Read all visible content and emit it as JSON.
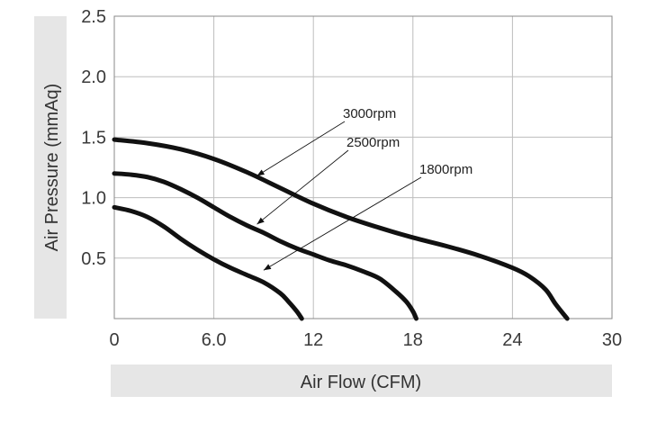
{
  "chart_data": {
    "type": "line",
    "xlabel": "Air Flow (CFM)",
    "ylabel": "Air Pressure (mmAq)",
    "xlim": [
      0,
      30
    ],
    "ylim": [
      0,
      2.5
    ],
    "x_ticks": [
      "0",
      "6.0",
      "12",
      "18",
      "24",
      "30"
    ],
    "y_ticks": [
      "0.5",
      "1.0",
      "1.5",
      "2.0",
      "2.5"
    ],
    "grid": true,
    "legend": "none",
    "series": [
      {
        "name": "3000rpm",
        "x": [
          0,
          2,
          4,
          6,
          8,
          10,
          12,
          14,
          16,
          18,
          20,
          22,
          24,
          25,
          26,
          26.6,
          27.3
        ],
        "y": [
          1.48,
          1.45,
          1.4,
          1.32,
          1.21,
          1.08,
          0.95,
          0.84,
          0.75,
          0.67,
          0.6,
          0.52,
          0.42,
          0.35,
          0.24,
          0.12,
          0.0
        ]
      },
      {
        "name": "2500rpm",
        "x": [
          0,
          1,
          2,
          3,
          4,
          5,
          6,
          7,
          8,
          9,
          10,
          11,
          12,
          13,
          14,
          15,
          16,
          17,
          17.6,
          18.0,
          18.2
        ],
        "y": [
          1.2,
          1.19,
          1.17,
          1.13,
          1.07,
          1.0,
          0.92,
          0.84,
          0.77,
          0.71,
          0.64,
          0.58,
          0.53,
          0.48,
          0.44,
          0.39,
          0.33,
          0.22,
          0.14,
          0.06,
          0.0
        ]
      },
      {
        "name": "1800rpm",
        "x": [
          0,
          1,
          2,
          3,
          4,
          5,
          6,
          7,
          8,
          9,
          10,
          10.5,
          11.0,
          11.3
        ],
        "y": [
          0.92,
          0.89,
          0.84,
          0.76,
          0.66,
          0.57,
          0.49,
          0.42,
          0.36,
          0.3,
          0.21,
          0.14,
          0.06,
          0.0
        ]
      }
    ],
    "annotations": [
      {
        "text": "3000rpm",
        "series": "3000rpm",
        "x": 8.6,
        "y": 1.18
      },
      {
        "text": "2500rpm",
        "series": "2500rpm",
        "x": 8.6,
        "y": 0.78
      },
      {
        "text": "1800rpm",
        "series": "1800rpm",
        "x": 9.0,
        "y": 0.4
      }
    ]
  },
  "colors": {
    "curve": "#111111",
    "grid": "#bdbdbd",
    "frame": "#888888",
    "title_band": "#e6e6e6"
  }
}
